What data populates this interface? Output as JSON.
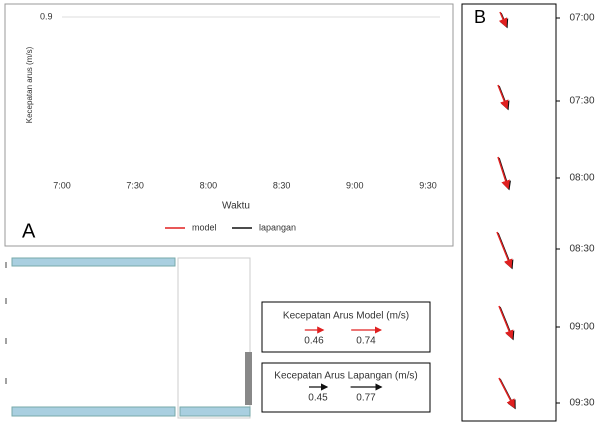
{
  "panel_a": {
    "label": "A",
    "ylabel": "Kecepatan arus (m/s)",
    "xlabel": "Waktu",
    "yticks": [
      0.9
    ],
    "xticks": [
      "7:00",
      "7:30",
      "8:00",
      "8:30",
      "9:00",
      "9:30"
    ],
    "legend": [
      {
        "name": "model",
        "color": "#e02020"
      },
      {
        "name": "lapangan",
        "color": "#111111"
      }
    ]
  },
  "panel_b": {
    "label": "B",
    "times": [
      "07:00",
      "07:30",
      "08:00",
      "08:30",
      "09:00",
      "09:30"
    ]
  },
  "legend_model": {
    "title": "Kecepatan Arus Model (m/s)",
    "values": [
      0.46,
      0.74
    ],
    "color": "#e02020"
  },
  "legend_field": {
    "title": "Kecepatan Arus Lapangan (m/s)",
    "values": [
      0.45,
      0.77
    ],
    "color": "#111111"
  }
}
